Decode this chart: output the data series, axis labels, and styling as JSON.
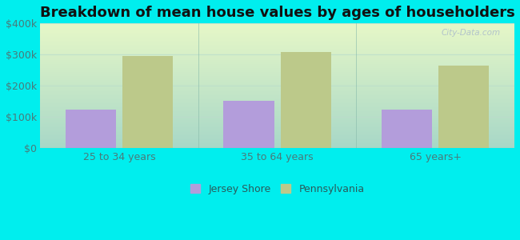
{
  "title": "Breakdown of mean house values by ages of householders",
  "categories": [
    "25 to 34 years",
    "35 to 64 years",
    "65 years+"
  ],
  "jersey_shore_values": [
    125000,
    152000,
    123000
  ],
  "pennsylvania_values": [
    295000,
    308000,
    265000
  ],
  "jersey_shore_color": "#b39ddb",
  "pennsylvania_color": "#bcc98a",
  "ylim": [
    0,
    400000
  ],
  "yticks": [
    0,
    100000,
    200000,
    300000,
    400000
  ],
  "ytick_labels": [
    "$0",
    "$100k",
    "$200k",
    "$300k",
    "$400k"
  ],
  "bar_width": 0.32,
  "background_color": "#00eeee",
  "plot_bg_top": "#e8f8f0",
  "plot_bg_bottom": "#d0f8f0",
  "title_fontsize": 13,
  "tick_fontsize": 9,
  "legend_fontsize": 9,
  "watermark": "City-Data.com",
  "legend_jersey": "Jersey Shore",
  "legend_pennsylvania": "Pennsylvania",
  "grid_color": "#ccddcc",
  "separator_color": "#aacccc"
}
